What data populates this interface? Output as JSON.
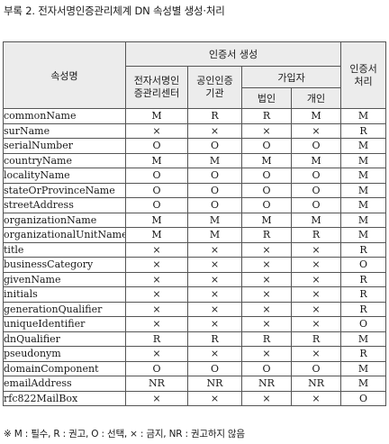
{
  "caption": "부록 2. 전자서명인증관리체계 DN 속성별 생성·처리",
  "header": {
    "attr_name": "속성명",
    "cert_creation": "인증서 생성",
    "root_ca": "전자서명인증관리센터",
    "accredited_ca": "공인인증기관",
    "subscriber": "가입자",
    "corporation": "법인",
    "individual": "개인",
    "cert_processing": "인증서처리"
  },
  "rows": [
    {
      "name": "commonName",
      "c": [
        "M",
        "R",
        "R",
        "M",
        "M"
      ]
    },
    {
      "name": "surName",
      "c": [
        "×",
        "×",
        "×",
        "×",
        "R"
      ]
    },
    {
      "name": "serialNumber",
      "c": [
        "O",
        "O",
        "O",
        "O",
        "M"
      ]
    },
    {
      "name": "countryName",
      "c": [
        "M",
        "M",
        "M",
        "M",
        "M"
      ]
    },
    {
      "name": "localityName",
      "c": [
        "O",
        "O",
        "O",
        "O",
        "M"
      ]
    },
    {
      "name": "stateOrProvinceName",
      "c": [
        "O",
        "O",
        "O",
        "O",
        "M"
      ]
    },
    {
      "name": "streetAddress",
      "c": [
        "O",
        "O",
        "O",
        "O",
        "M"
      ]
    },
    {
      "name": "organizationName",
      "c": [
        "M",
        "M",
        "M",
        "M",
        "M"
      ]
    },
    {
      "name": "organizationalUnitName",
      "c": [
        "M",
        "M",
        "R",
        "R",
        "M"
      ]
    },
    {
      "name": "title",
      "c": [
        "×",
        "×",
        "×",
        "×",
        "R"
      ]
    },
    {
      "name": "businessCategory",
      "c": [
        "×",
        "×",
        "×",
        "×",
        "O"
      ]
    },
    {
      "name": "givenName",
      "c": [
        "×",
        "×",
        "×",
        "×",
        "R"
      ]
    },
    {
      "name": "initials",
      "c": [
        "×",
        "×",
        "×",
        "×",
        "R"
      ]
    },
    {
      "name": "generationQualifier",
      "c": [
        "×",
        "×",
        "×",
        "×",
        "R"
      ]
    },
    {
      "name": "uniqueIdentifier",
      "c": [
        "×",
        "×",
        "×",
        "×",
        "O"
      ]
    },
    {
      "name": "dnQualifier",
      "c": [
        "R",
        "R",
        "R",
        "R",
        "M"
      ]
    },
    {
      "name": "pseudonym",
      "c": [
        "×",
        "×",
        "×",
        "×",
        "R"
      ]
    },
    {
      "name": "domainComponent",
      "c": [
        "O",
        "O",
        "O",
        "O",
        "M"
      ]
    },
    {
      "name": "emailAddress",
      "c": [
        "NR",
        "NR",
        "NR",
        "NR",
        "M"
      ]
    },
    {
      "name": "rfc822MailBox",
      "c": [
        "×",
        "×",
        "×",
        "×",
        "O"
      ]
    }
  ],
  "legend": "※ M : 필수, R : 권고, O : 선택, × : 금지, NR : 권고하지 않음"
}
